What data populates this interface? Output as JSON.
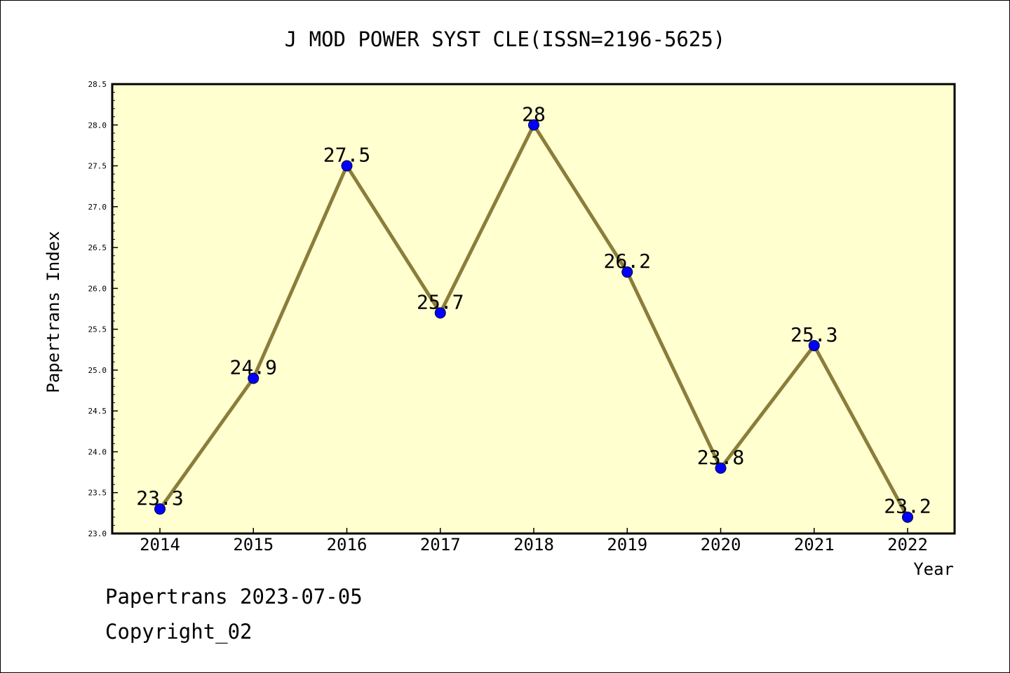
{
  "chart_data": {
    "type": "line",
    "title": "J MOD POWER SYST CLE(ISSN=2196-5625)",
    "xlabel": "Year",
    "ylabel": "Papertrans Index",
    "categories": [
      "2014",
      "2015",
      "2016",
      "2017",
      "2018",
      "2019",
      "2020",
      "2021",
      "2022"
    ],
    "series": [
      {
        "name": "Papertrans Index",
        "values": [
          23.3,
          24.9,
          27.5,
          25.7,
          28,
          26.2,
          23.8,
          25.3,
          23.2
        ],
        "labels": [
          "23.3",
          "24.9",
          "27.5",
          "25.7",
          "28",
          "26.2",
          "23.8",
          "25.3",
          "23.2"
        ]
      }
    ],
    "ylim": [
      23.0,
      28.5
    ],
    "yticks": [
      "23.0",
      "23.5",
      "24.0",
      "24.5",
      "25.0",
      "25.5",
      "26.0",
      "26.5",
      "27.0",
      "27.5",
      "28.0",
      "28.5"
    ],
    "grid": false,
    "colors": {
      "plot_background": "#ffffd0",
      "line": "#8b7d3a",
      "marker": "#0000ff",
      "axis": "#000000"
    }
  },
  "footer": {
    "date_line": "Papertrans 2023-07-05",
    "copyright": "Copyright_02"
  }
}
